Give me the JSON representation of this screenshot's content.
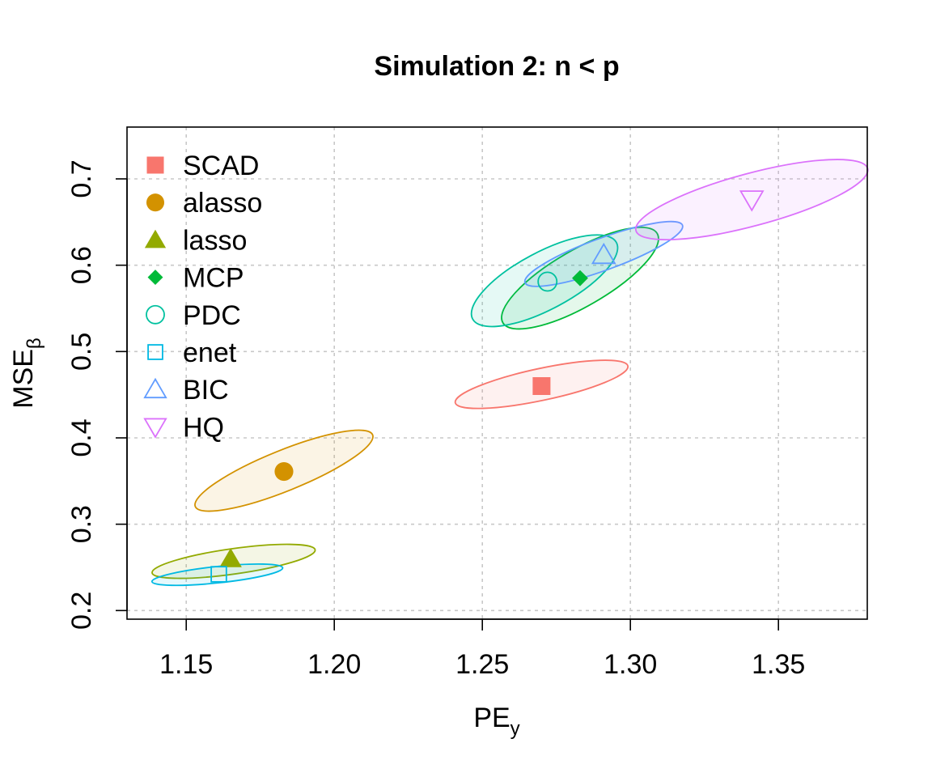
{
  "chart_data": {
    "type": "scatter",
    "title": "Simulation 2: n < p",
    "xlabel": {
      "main": "PE",
      "sub": "y"
    },
    "ylabel": {
      "main": "MSE",
      "sub": "β"
    },
    "xlim": [
      1.13,
      1.38
    ],
    "ylim": [
      0.19,
      0.76
    ],
    "xticks": [
      1.15,
      1.2,
      1.25,
      1.3,
      1.35
    ],
    "xtick_labels": [
      "1.15",
      "1.20",
      "1.25",
      "1.30",
      "1.35"
    ],
    "yticks": [
      0.2,
      0.3,
      0.4,
      0.5,
      0.6,
      0.7
    ],
    "ytick_labels": [
      "0.2",
      "0.3",
      "0.4",
      "0.5",
      "0.6",
      "0.7"
    ],
    "grid": true,
    "legend_position": "top-left",
    "series": [
      {
        "name": "SCAD",
        "symbol": "square-filled",
        "color": "#F8766D",
        "x": 1.27,
        "y": 0.46,
        "ellipse": {
          "cx": 1.27,
          "cy": 0.462,
          "rx": 0.0298,
          "ry": 0.0185,
          "angle": -12
        }
      },
      {
        "name": "alasso",
        "symbol": "circle-filled",
        "color": "#D39200",
        "x": 1.183,
        "y": 0.361,
        "ellipse": {
          "cx": 1.183,
          "cy": 0.362,
          "rx": 0.0323,
          "ry": 0.0235,
          "angle": -22
        }
      },
      {
        "name": "lasso",
        "symbol": "triangle-filled",
        "color": "#93AA00",
        "x": 1.165,
        "y": 0.26,
        "ellipse": {
          "cx": 1.166,
          "cy": 0.257,
          "rx": 0.0278,
          "ry": 0.0147,
          "angle": -8
        }
      },
      {
        "name": "MCP",
        "symbol": "diamond-filled",
        "color": "#00BA38",
        "x": 1.283,
        "y": 0.585,
        "ellipse": {
          "cx": 1.283,
          "cy": 0.585,
          "rx": 0.0301,
          "ry": 0.0326,
          "angle": -30
        }
      },
      {
        "name": "PDC",
        "symbol": "circle-open",
        "color": "#00C19F",
        "x": 1.272,
        "y": 0.581,
        "ellipse": {
          "cx": 1.271,
          "cy": 0.582,
          "rx": 0.0275,
          "ry": 0.0331,
          "angle": -28
        }
      },
      {
        "name": "enet",
        "symbol": "square-open",
        "color": "#00B9E3",
        "x": 1.161,
        "y": 0.242,
        "ellipse": {
          "cx": 1.1605,
          "cy": 0.2415,
          "rx": 0.0222,
          "ry": 0.0095,
          "angle": -6
        }
      },
      {
        "name": "BIC",
        "symbol": "triangle-open",
        "color": "#619CFF",
        "x": 1.291,
        "y": 0.612,
        "ellipse": {
          "cx": 1.291,
          "cy": 0.613,
          "rx": 0.0283,
          "ry": 0.0186,
          "angle": -20
        }
      },
      {
        "name": "HQ",
        "symbol": "triangle-down-open",
        "color": "#DB72FB",
        "x": 1.341,
        "y": 0.676,
        "ellipse": {
          "cx": 1.341,
          "cy": 0.676,
          "rx": 0.0405,
          "ry": 0.0304,
          "angle": -15
        }
      }
    ]
  }
}
